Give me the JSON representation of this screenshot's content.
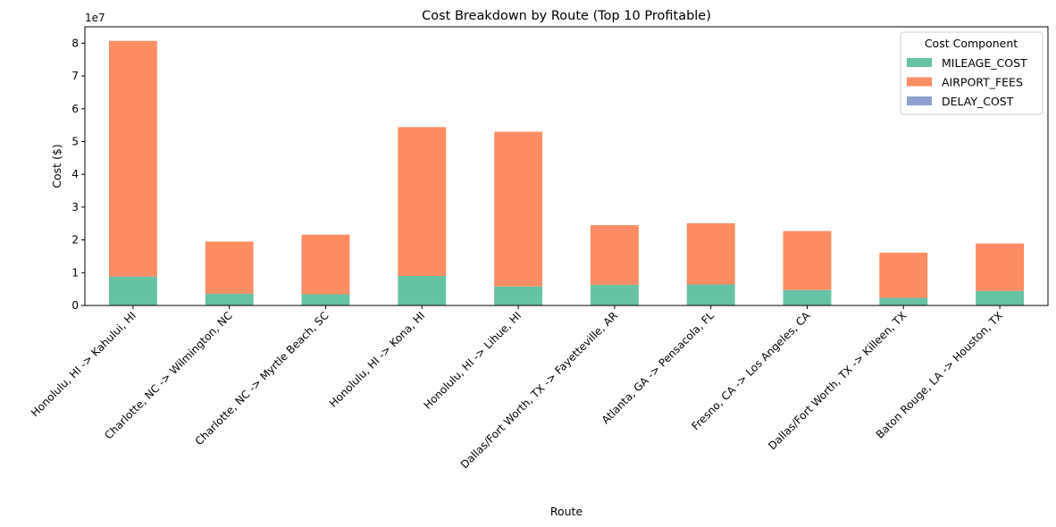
{
  "chart_data": {
    "type": "bar",
    "stacked": true,
    "title": "Cost Breakdown by Route (Top 10 Profitable)",
    "xlabel": "Route",
    "ylabel": "Cost ($)",
    "y_offset_label": "1e7",
    "ylim": [
      0,
      85000000
    ],
    "yticks": [
      0,
      10000000,
      20000000,
      30000000,
      40000000,
      50000000,
      60000000,
      70000000,
      80000000
    ],
    "ytick_labels": [
      "0",
      "1",
      "2",
      "3",
      "4",
      "5",
      "6",
      "7",
      "8"
    ],
    "grid": false,
    "legend": {
      "title": "Cost Component",
      "placement": "top-right"
    },
    "categories": [
      "Honolulu, HI -> Kahului, HI",
      "Charlotte, NC -> Wilmington, NC",
      "Charlotte, NC -> Myrtle Beach, SC",
      "Honolulu, HI -> Kona, HI",
      "Honolulu, HI -> Lihue, HI",
      "Dallas/Fort Worth, TX -> Fayetteville, AR",
      "Atlanta, GA -> Pensacola, FL",
      "Fresno, CA -> Los Angeles, CA",
      "Dallas/Fort Worth, TX -> Killeen, TX",
      "Baton Rouge, LA -> Houston, TX"
    ],
    "series": [
      {
        "name": "MILEAGE_COST",
        "color": "#66c2a5",
        "values": [
          8800000,
          3600000,
          3400000,
          9000000,
          5800000,
          6300000,
          6400000,
          4700000,
          2300000,
          4400000
        ]
      },
      {
        "name": "AIRPORT_FEES",
        "color": "#fc8d62",
        "values": [
          71900000,
          15900000,
          18200000,
          45400000,
          47200000,
          18200000,
          18700000,
          18000000,
          13800000,
          14500000
        ]
      },
      {
        "name": "DELAY_COST",
        "color": "#8da0cb",
        "values": [
          0,
          0,
          0,
          0,
          0,
          0,
          0,
          0,
          0,
          0
        ]
      }
    ]
  }
}
